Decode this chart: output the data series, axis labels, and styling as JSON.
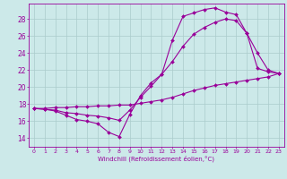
{
  "xlabel": "Windchill (Refroidissement éolien,°C)",
  "bg_color": "#cce9e9",
  "grid_color": "#aacccc",
  "line_color": "#990099",
  "xlim": [
    -0.5,
    23.5
  ],
  "ylim": [
    13.0,
    29.8
  ],
  "yticks": [
    14,
    16,
    18,
    20,
    22,
    24,
    26,
    28
  ],
  "xticks": [
    0,
    1,
    2,
    3,
    4,
    5,
    6,
    7,
    8,
    9,
    10,
    11,
    12,
    13,
    14,
    15,
    16,
    17,
    18,
    19,
    20,
    21,
    22,
    23
  ],
  "line1_x": [
    0,
    1,
    2,
    3,
    4,
    5,
    6,
    7,
    8,
    9,
    10,
    11,
    12,
    13,
    14,
    15,
    16,
    17,
    18,
    19,
    20,
    21,
    22,
    23
  ],
  "line1_y": [
    17.5,
    17.4,
    17.2,
    16.7,
    16.2,
    16.0,
    15.7,
    14.7,
    14.2,
    16.8,
    19.0,
    20.5,
    21.5,
    25.5,
    28.3,
    28.7,
    29.1,
    29.3,
    28.8,
    28.5,
    26.3,
    22.2,
    21.8,
    21.6
  ],
  "line2_x": [
    0,
    1,
    2,
    3,
    4,
    5,
    6,
    7,
    8,
    9,
    10,
    11,
    12,
    13,
    14,
    15,
    16,
    17,
    18,
    19,
    20,
    21,
    22,
    23
  ],
  "line2_y": [
    17.5,
    17.4,
    17.3,
    17.0,
    16.9,
    16.7,
    16.6,
    16.4,
    16.1,
    17.3,
    18.8,
    20.1,
    21.5,
    23.0,
    24.8,
    26.2,
    27.0,
    27.6,
    28.0,
    27.8,
    26.3,
    24.0,
    22.0,
    21.6
  ],
  "line3_x": [
    0,
    1,
    2,
    3,
    4,
    5,
    6,
    7,
    8,
    9,
    10,
    11,
    12,
    13,
    14,
    15,
    16,
    17,
    18,
    19,
    20,
    21,
    22,
    23
  ],
  "line3_y": [
    17.5,
    17.5,
    17.6,
    17.6,
    17.7,
    17.7,
    17.8,
    17.8,
    17.9,
    17.9,
    18.1,
    18.3,
    18.5,
    18.8,
    19.2,
    19.6,
    19.9,
    20.2,
    20.4,
    20.6,
    20.8,
    21.0,
    21.2,
    21.6
  ]
}
